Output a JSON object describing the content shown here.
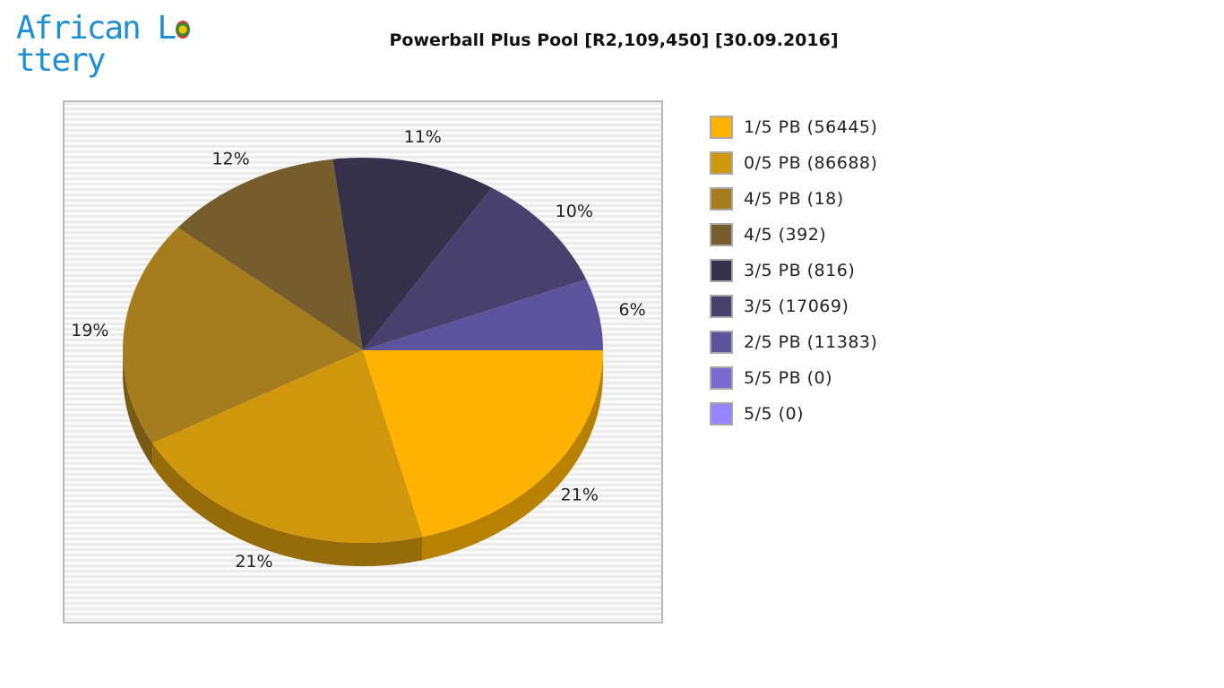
{
  "logo": {
    "text_part1": "African L",
    "text_part2": "ttery"
  },
  "chart_data": {
    "type": "pie",
    "title": "Powerball Plus Pool [R2,109,450] [30.09.2016]",
    "legend_position": "right",
    "slices": [
      {
        "label": "1/5 PB (56445)",
        "value": 56445,
        "percent_label": "21%",
        "color": "#ffb300"
      },
      {
        "label": "0/5 PB (86688)",
        "value": 86688,
        "percent_label": "21%",
        "color": "#d0960c"
      },
      {
        "label": "4/5 PB (18)",
        "value": 18,
        "percent_label": "19%",
        "color": "#a57d1c"
      },
      {
        "label": "4/5 (392)",
        "value": 392,
        "percent_label": "12%",
        "color": "#765e2c"
      },
      {
        "label": "3/5 PB (816)",
        "value": 816,
        "percent_label": "11%",
        "color": "#35314a"
      },
      {
        "label": "3/5 (17069)",
        "value": 17069,
        "percent_label": "10%",
        "color": "#48416d"
      },
      {
        "label": "2/5 PB (11383)",
        "value": 11383,
        "percent_label": "6%",
        "color": "#5d539c"
      },
      {
        "label": "5/5 PB (0)",
        "value": 0,
        "percent_label": "",
        "color": "#7a6ad2"
      },
      {
        "label": "5/5 (0)",
        "value": 0,
        "percent_label": "",
        "color": "#9585ff"
      }
    ],
    "slice_percents": [
      21,
      21,
      19,
      12,
      11,
      10,
      6,
      0,
      0
    ]
  }
}
